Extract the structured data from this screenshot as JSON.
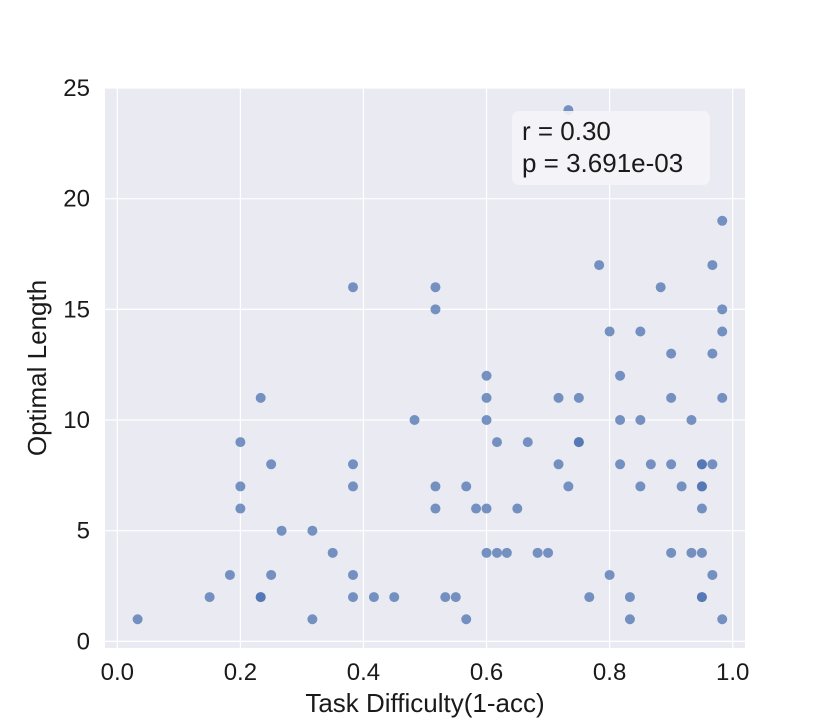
{
  "chart_data": {
    "type": "scatter",
    "xlabel": "Task Difficulty(1-acc)",
    "ylabel": "Optimal Length",
    "xlim": [
      -0.02,
      1.02
    ],
    "ylim": [
      -0.3,
      25.0
    ],
    "xticks": [
      0.0,
      0.2,
      0.4,
      0.6,
      0.8,
      1.0
    ],
    "xtick_labels": [
      "0.0",
      "0.2",
      "0.4",
      "0.6",
      "0.8",
      "1.0"
    ],
    "yticks": [
      0,
      5,
      10,
      15,
      20,
      25
    ],
    "ytick_labels": [
      "0",
      "5",
      "10",
      "15",
      "20",
      "25"
    ],
    "grid": true,
    "colors": {
      "point": "#4c72b0",
      "plot_bg": "#eaeaf2",
      "grid": "#ffffff",
      "annot_bg": "#f4f4f8"
    },
    "annotation": {
      "line1": "r = 0.30",
      "line2": "p = 3.691e-03"
    },
    "points": [
      {
        "x": 0.033,
        "y": 1
      },
      {
        "x": 0.15,
        "y": 2
      },
      {
        "x": 0.183,
        "y": 3
      },
      {
        "x": 0.2,
        "y": 9
      },
      {
        "x": 0.2,
        "y": 7
      },
      {
        "x": 0.2,
        "y": 6
      },
      {
        "x": 0.233,
        "y": 11
      },
      {
        "x": 0.233,
        "y": 2
      },
      {
        "x": 0.233,
        "y": 2
      },
      {
        "x": 0.25,
        "y": 8
      },
      {
        "x": 0.25,
        "y": 3
      },
      {
        "x": 0.267,
        "y": 5
      },
      {
        "x": 0.317,
        "y": 5
      },
      {
        "x": 0.317,
        "y": 1
      },
      {
        "x": 0.35,
        "y": 4
      },
      {
        "x": 0.383,
        "y": 16
      },
      {
        "x": 0.383,
        "y": 8
      },
      {
        "x": 0.383,
        "y": 7
      },
      {
        "x": 0.383,
        "y": 3
      },
      {
        "x": 0.383,
        "y": 2
      },
      {
        "x": 0.417,
        "y": 2
      },
      {
        "x": 0.45,
        "y": 2
      },
      {
        "x": 0.483,
        "y": 10
      },
      {
        "x": 0.517,
        "y": 16
      },
      {
        "x": 0.517,
        "y": 15
      },
      {
        "x": 0.517,
        "y": 7
      },
      {
        "x": 0.517,
        "y": 6
      },
      {
        "x": 0.533,
        "y": 2
      },
      {
        "x": 0.55,
        "y": 2
      },
      {
        "x": 0.567,
        "y": 7
      },
      {
        "x": 0.567,
        "y": 1
      },
      {
        "x": 0.583,
        "y": 6
      },
      {
        "x": 0.6,
        "y": 12
      },
      {
        "x": 0.6,
        "y": 11
      },
      {
        "x": 0.6,
        "y": 10
      },
      {
        "x": 0.6,
        "y": 6
      },
      {
        "x": 0.6,
        "y": 4
      },
      {
        "x": 0.617,
        "y": 9
      },
      {
        "x": 0.617,
        "y": 4
      },
      {
        "x": 0.633,
        "y": 4
      },
      {
        "x": 0.65,
        "y": 6
      },
      {
        "x": 0.667,
        "y": 9
      },
      {
        "x": 0.683,
        "y": 4
      },
      {
        "x": 0.7,
        "y": 4
      },
      {
        "x": 0.717,
        "y": 11
      },
      {
        "x": 0.717,
        "y": 8
      },
      {
        "x": 0.733,
        "y": 24
      },
      {
        "x": 0.733,
        "y": 7
      },
      {
        "x": 0.75,
        "y": 11
      },
      {
        "x": 0.75,
        "y": 9
      },
      {
        "x": 0.75,
        "y": 9
      },
      {
        "x": 0.767,
        "y": 2
      },
      {
        "x": 0.783,
        "y": 17
      },
      {
        "x": 0.8,
        "y": 14
      },
      {
        "x": 0.8,
        "y": 3
      },
      {
        "x": 0.817,
        "y": 12
      },
      {
        "x": 0.817,
        "y": 10
      },
      {
        "x": 0.817,
        "y": 8
      },
      {
        "x": 0.833,
        "y": 2
      },
      {
        "x": 0.833,
        "y": 1
      },
      {
        "x": 0.85,
        "y": 14
      },
      {
        "x": 0.85,
        "y": 10
      },
      {
        "x": 0.85,
        "y": 7
      },
      {
        "x": 0.867,
        "y": 8
      },
      {
        "x": 0.883,
        "y": 16
      },
      {
        "x": 0.9,
        "y": 13
      },
      {
        "x": 0.9,
        "y": 11
      },
      {
        "x": 0.9,
        "y": 8
      },
      {
        "x": 0.9,
        "y": 4
      },
      {
        "x": 0.917,
        "y": 7
      },
      {
        "x": 0.933,
        "y": 10
      },
      {
        "x": 0.933,
        "y": 4
      },
      {
        "x": 0.95,
        "y": 8
      },
      {
        "x": 0.95,
        "y": 8
      },
      {
        "x": 0.95,
        "y": 7
      },
      {
        "x": 0.95,
        "y": 7
      },
      {
        "x": 0.95,
        "y": 6
      },
      {
        "x": 0.95,
        "y": 4
      },
      {
        "x": 0.95,
        "y": 2
      },
      {
        "x": 0.95,
        "y": 2
      },
      {
        "x": 0.967,
        "y": 17
      },
      {
        "x": 0.967,
        "y": 13
      },
      {
        "x": 0.967,
        "y": 8
      },
      {
        "x": 0.967,
        "y": 3
      },
      {
        "x": 0.983,
        "y": 19
      },
      {
        "x": 0.983,
        "y": 15
      },
      {
        "x": 0.983,
        "y": 14
      },
      {
        "x": 0.983,
        "y": 11
      },
      {
        "x": 0.983,
        "y": 1
      }
    ]
  }
}
